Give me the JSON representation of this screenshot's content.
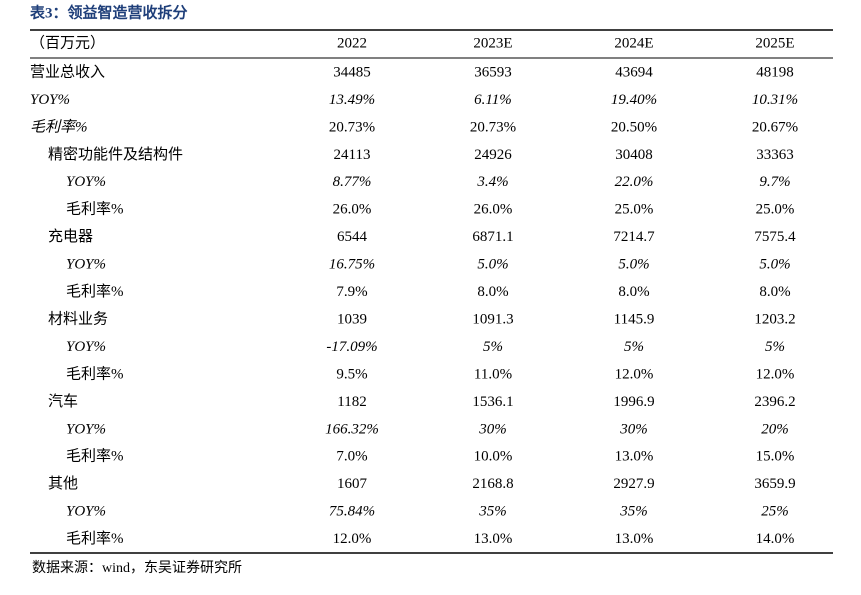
{
  "title": "表3：领益智造营收拆分",
  "table": {
    "header": [
      "（百万元）",
      "2022",
      "2023E",
      "2024E",
      "2025E"
    ],
    "rows": [
      [
        "营业总收入",
        "34485",
        "36593",
        "43694",
        "48198"
      ],
      [
        "YOY%",
        "13.49%",
        "6.11%",
        "19.40%",
        "10.31%"
      ],
      [
        "毛利率%",
        "20.73%",
        "20.73%",
        "20.50%",
        "20.67%"
      ],
      [
        "精密功能件及结构件",
        "24113",
        "24926",
        "30408",
        "33363"
      ],
      [
        "YOY%",
        "8.77%",
        "3.4%",
        "22.0%",
        "9.7%"
      ],
      [
        "毛利率%",
        "26.0%",
        "26.0%",
        "25.0%",
        "25.0%"
      ],
      [
        "充电器",
        "6544",
        "6871.1",
        "7214.7",
        "7575.4"
      ],
      [
        "YOY%",
        "16.75%",
        "5.0%",
        "5.0%",
        "5.0%"
      ],
      [
        "毛利率%",
        "7.9%",
        "8.0%",
        "8.0%",
        "8.0%"
      ],
      [
        "材料业务",
        "1039",
        "1091.3",
        "1145.9",
        "1203.2"
      ],
      [
        "YOY%",
        "-17.09%",
        "5%",
        "5%",
        "5%"
      ],
      [
        "毛利率%",
        "9.5%",
        "11.0%",
        "12.0%",
        "12.0%"
      ],
      [
        "汽车",
        "1182",
        "1536.1",
        "1996.9",
        "2396.2"
      ],
      [
        "YOY%",
        "166.32%",
        "30%",
        "30%",
        "20%"
      ],
      [
        "毛利率%",
        "7.0%",
        "10.0%",
        "13.0%",
        "15.0%"
      ],
      [
        "其他",
        "1607",
        "2168.8",
        "2927.9",
        "3659.9"
      ],
      [
        "YOY%",
        "75.84%",
        "35%",
        "35%",
        "25%"
      ],
      [
        "毛利率%",
        "12.0%",
        "13.0%",
        "13.0%",
        "14.0%"
      ]
    ]
  },
  "source": "数据来源：wind，东吴证券研究所"
}
